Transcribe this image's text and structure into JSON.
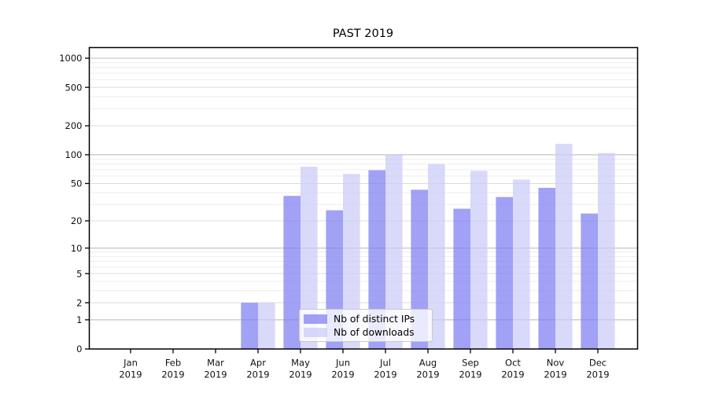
{
  "chart_data": {
    "type": "bar",
    "title": "PAST 2019",
    "categories": [
      "Jan 2019",
      "Feb 2019",
      "Mar 2019",
      "Apr 2019",
      "May 2019",
      "Jun 2019",
      "Jul 2019",
      "Aug 2019",
      "Sep 2019",
      "Oct 2019",
      "Nov 2019",
      "Dec 2019"
    ],
    "series": [
      {
        "name": "Nb of distinct IPs",
        "color": "#7d7df2",
        "values": [
          0,
          0,
          0,
          2,
          37,
          26,
          69,
          43,
          27,
          36,
          45,
          24
        ]
      },
      {
        "name": "Nb of downloads",
        "color": "#cbcbf8",
        "values": [
          0,
          0,
          0,
          2,
          75,
          63,
          100,
          80,
          68,
          55,
          130,
          104
        ]
      }
    ],
    "bar_opacity": 0.72,
    "yscale": "log1p",
    "yticks": [
      0,
      1,
      2,
      5,
      10,
      20,
      50,
      100,
      200,
      500,
      1000
    ],
    "yticks_minor": [
      3,
      4,
      6,
      7,
      8,
      9,
      30,
      40,
      60,
      70,
      80,
      90,
      300,
      400,
      600,
      700,
      800,
      900
    ],
    "ylim": [
      0,
      1290
    ],
    "xlabel": "",
    "ylabel": "",
    "grid": true,
    "legend_position": "lower center"
  },
  "colors": {
    "axis": "#000000",
    "grid_major_decade": "#c4c4c4",
    "grid_major": "#dcdcdc",
    "grid_minor": "#ededed",
    "tick_text": "#111111"
  }
}
